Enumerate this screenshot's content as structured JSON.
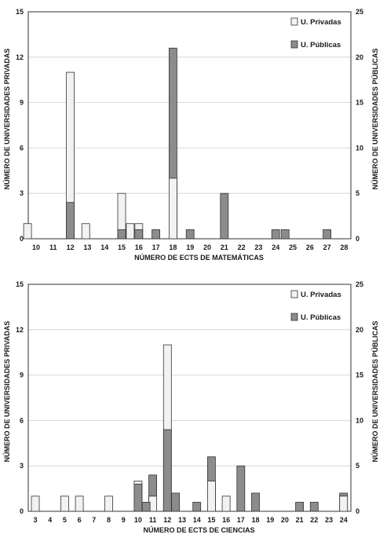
{
  "colors": {
    "privadas": "#f2f2f2",
    "publicas": "#8c8c8c",
    "border": "#333333",
    "grid": "#cfcfcf"
  },
  "chart_data": [
    {
      "type": "bar",
      "xlabel": "NÚMERO DE ECTS DE MATEMÁTICAS",
      "ylabel": "NÚMERO DE UNIVERSIDADES PRIVADAS",
      "y2label": "NÚMERO DE UNIVERSIDADES PÚBLICAS",
      "ylim": [
        0,
        15
      ],
      "y2lim": [
        0,
        25
      ],
      "yticks": [
        0,
        3,
        6,
        9,
        12,
        15
      ],
      "y2ticks": [
        0,
        5,
        10,
        15,
        20,
        25
      ],
      "categories": [
        10,
        11,
        12,
        13,
        14,
        15,
        16,
        17,
        18,
        19,
        20,
        21,
        22,
        23,
        24,
        25,
        26,
        27,
        28
      ],
      "legend": {
        "position": "top-right",
        "entries": [
          "U. Privadas",
          "U. Públicas"
        ]
      },
      "series": [
        {
          "name": "U. Privadas",
          "axis": "left",
          "points": [
            {
              "x": 10,
              "y": 1,
              "offset": -0.5
            },
            {
              "x": 12,
              "y": 11,
              "offset": 0
            },
            {
              "x": 13,
              "y": 1,
              "offset": -0.1
            },
            {
              "x": 15,
              "y": 3,
              "offset": 0
            },
            {
              "x": 16,
              "y": 1,
              "offset": -0.5
            },
            {
              "x": 16,
              "y": 1,
              "offset": 0
            },
            {
              "x": 18,
              "y": 4,
              "offset": 0
            }
          ]
        },
        {
          "name": "U. Públicas",
          "axis": "right",
          "points": [
            {
              "x": 12,
              "y": 4,
              "offset": 0
            },
            {
              "x": 15,
              "y": 1,
              "offset": 0
            },
            {
              "x": 16,
              "y": 1,
              "offset": 0
            },
            {
              "x": 17,
              "y": 1,
              "offset": 0
            },
            {
              "x": 18,
              "y": 21,
              "offset": 0
            },
            {
              "x": 19,
              "y": 1,
              "offset": 0
            },
            {
              "x": 21,
              "y": 5,
              "offset": 0
            },
            {
              "x": 24,
              "y": 1,
              "offset": 0
            },
            {
              "x": 24,
              "y": 1,
              "offset": 0.55
            },
            {
              "x": 27,
              "y": 1,
              "offset": 0
            }
          ]
        }
      ]
    },
    {
      "type": "bar",
      "xlabel": "NÚMERO DE ECTS DE CIENCIAS",
      "ylabel": "NÚMERO DE UNIVERSIDADES PRIVADAS",
      "y2label": "NÚMERO DE UNIVERSIDADES PÚBLICAS",
      "ylim": [
        0,
        15
      ],
      "y2lim": [
        0,
        25
      ],
      "yticks": [
        0,
        3,
        6,
        9,
        12,
        15
      ],
      "y2ticks": [
        0,
        5,
        10,
        15,
        20,
        25
      ],
      "categories": [
        3,
        4,
        5,
        6,
        7,
        8,
        9,
        10,
        11,
        12,
        13,
        14,
        15,
        16,
        17,
        18,
        19,
        20,
        21,
        22,
        23,
        24
      ],
      "legend": {
        "position": "top-right",
        "entries": [
          "U. Privadas",
          "U. Públicas"
        ]
      },
      "series": [
        {
          "name": "U. Privadas",
          "axis": "left",
          "points": [
            {
              "x": 3,
              "y": 1,
              "offset": 0
            },
            {
              "x": 5,
              "y": 1,
              "offset": 0
            },
            {
              "x": 6,
              "y": 1,
              "offset": 0
            },
            {
              "x": 8,
              "y": 1,
              "offset": 0
            },
            {
              "x": 10,
              "y": 2,
              "offset": 0
            },
            {
              "x": 11,
              "y": 1,
              "offset": 0
            },
            {
              "x": 12,
              "y": 11,
              "offset": 0
            },
            {
              "x": 15,
              "y": 2,
              "offset": 0
            },
            {
              "x": 16,
              "y": 1,
              "offset": 0
            },
            {
              "x": 24,
              "y": 1,
              "offset": 0
            }
          ]
        },
        {
          "name": "U. Públicas",
          "axis": "right",
          "points": [
            {
              "x": 10,
              "y": 3,
              "offset": 0
            },
            {
              "x": 10,
              "y": 1,
              "offset": 0.55
            },
            {
              "x": 11,
              "y": 4,
              "offset": 0
            },
            {
              "x": 12,
              "y": 9,
              "offset": 0
            },
            {
              "x": 12,
              "y": 2,
              "offset": 0.55
            },
            {
              "x": 14,
              "y": 1,
              "offset": 0
            },
            {
              "x": 15,
              "y": 6,
              "offset": 0
            },
            {
              "x": 17,
              "y": 5,
              "offset": 0
            },
            {
              "x": 18,
              "y": 2,
              "offset": 0
            },
            {
              "x": 21,
              "y": 1,
              "offset": 0
            },
            {
              "x": 22,
              "y": 1,
              "offset": 0
            },
            {
              "x": 24,
              "y": 2,
              "offset": 0
            }
          ]
        }
      ]
    }
  ]
}
